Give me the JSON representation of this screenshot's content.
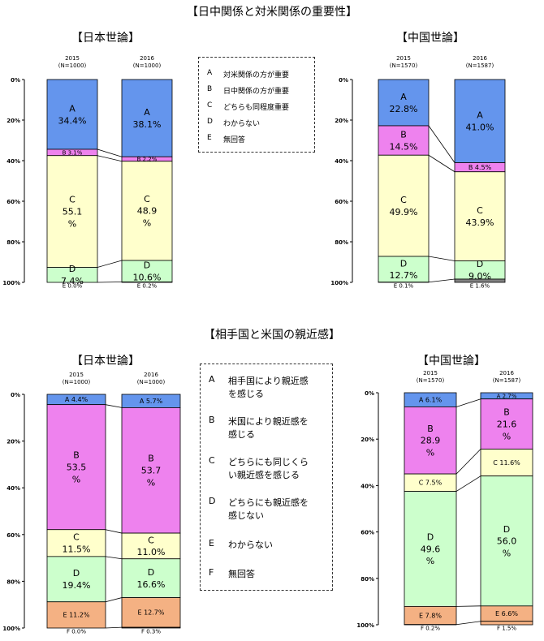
{
  "titles": {
    "top": "【日中関係と対米関係の重要性】",
    "bottom": "【相手国と米国の親近感】"
  },
  "panel_titles": {
    "top_left": "【日本世論】",
    "top_right": "【中国世論】",
    "bottom_left": "【日本世論】",
    "bottom_right": "【中国世論】"
  },
  "legend_top": {
    "items": [
      {
        "key": "A",
        "text": "対米関係の方が重要"
      },
      {
        "key": "B",
        "text": "日中関係の方が重要"
      },
      {
        "key": "C",
        "text": "どちらも同程度重要"
      },
      {
        "key": "D",
        "text": "わからない"
      },
      {
        "key": "E",
        "text": "無回答"
      }
    ]
  },
  "legend_bottom": {
    "items": [
      {
        "key": "A",
        "text": "相手国により親近感\nを感じる"
      },
      {
        "key": "B",
        "text": "米国により親近感を\n感じる"
      },
      {
        "key": "C",
        "text": "どちらにも同じくら\nい親近感を感じる"
      },
      {
        "key": "D",
        "text": "どちらにも親近感を\n感じない"
      },
      {
        "key": "E",
        "text": "わからない"
      },
      {
        "key": "F",
        "text": "無回答"
      }
    ]
  },
  "colors": {
    "A": "#6495ED",
    "B": "#EE82EE",
    "C": "#FFFFCC",
    "D": "#CCFFCC",
    "E": "#FFFFFF",
    "E_cn_2016_top": "#808080",
    "E_bottom": "#F4B183",
    "F_bottom": "#F4B183"
  },
  "chart_data": [
    {
      "type": "bar",
      "stacked": true,
      "categories": [
        "2015\n(N=1000)",
        "2016\n(N=1000)"
      ],
      "yticks": [
        "0%",
        "20%",
        "40%",
        "60%",
        "80%",
        "100%"
      ],
      "series": [
        {
          "name": "A",
          "values": [
            34.4,
            38.1
          ],
          "labels": [
            "A\n34.4%",
            "A\n38.1%"
          ]
        },
        {
          "name": "B",
          "values": [
            3.1,
            2.2
          ],
          "labels": [
            "B 3.1%",
            "B 2.2%"
          ]
        },
        {
          "name": "C",
          "values": [
            55.1,
            48.9
          ],
          "labels": [
            "C\n55.1\n%",
            "C\n48.9\n%"
          ]
        },
        {
          "name": "D",
          "values": [
            7.4,
            10.6
          ],
          "labels": [
            "D\n7.4%",
            "D\n10.6%"
          ]
        },
        {
          "name": "E",
          "values": [
            0.0,
            0.2
          ],
          "labels": [
            "E 0.0%",
            "E 0.2%"
          ]
        }
      ]
    },
    {
      "type": "bar",
      "stacked": true,
      "categories": [
        "2015\n(N=1570)",
        "2016\n(N=1587)"
      ],
      "yticks": [
        "0%",
        "20%",
        "40%",
        "60%",
        "80%",
        "100%"
      ],
      "series": [
        {
          "name": "A",
          "values": [
            22.8,
            41.0
          ],
          "labels": [
            "A\n22.8%",
            "A\n41.0%"
          ]
        },
        {
          "name": "B",
          "values": [
            14.5,
            4.5
          ],
          "labels": [
            "B\n14.5%",
            "B 4.5%"
          ]
        },
        {
          "name": "C",
          "values": [
            49.9,
            43.9
          ],
          "labels": [
            "C\n49.9%",
            "C\n43.9%"
          ]
        },
        {
          "name": "D",
          "values": [
            12.7,
            9.0
          ],
          "labels": [
            "D\n12.7%",
            "D\n9.0%"
          ]
        },
        {
          "name": "E",
          "values": [
            0.1,
            1.6
          ],
          "labels": [
            "E 0.1%",
            "E 1.6%"
          ]
        }
      ]
    },
    {
      "type": "bar",
      "stacked": true,
      "categories": [
        "2015\n(N=1000)",
        "2016\n(N=1000)"
      ],
      "yticks": [
        "0%",
        "20%",
        "40%",
        "60%",
        "80%",
        "100%"
      ],
      "series": [
        {
          "name": "A",
          "values": [
            4.4,
            5.7
          ],
          "labels": [
            "A 4.4%",
            "A 5.7%"
          ]
        },
        {
          "name": "B",
          "values": [
            53.5,
            53.7
          ],
          "labels": [
            "B\n53.5\n%",
            "B\n53.7\n%"
          ]
        },
        {
          "name": "C",
          "values": [
            11.5,
            11.0
          ],
          "labels": [
            "C\n11.5%",
            "C\n11.0%"
          ]
        },
        {
          "name": "D",
          "values": [
            19.4,
            16.6
          ],
          "labels": [
            "D\n19.4%",
            "D\n16.6%"
          ]
        },
        {
          "name": "E",
          "values": [
            11.2,
            12.7
          ],
          "labels": [
            "E 11.2%",
            "E 12.7%"
          ]
        },
        {
          "name": "F",
          "values": [
            0.0,
            0.3
          ],
          "labels": [
            "F 0.0%",
            "F 0.3%"
          ]
        }
      ]
    },
    {
      "type": "bar",
      "stacked": true,
      "categories": [
        "2015\n(N=1570)",
        "2016\n(N=1587)"
      ],
      "yticks": [
        "0%",
        "20%",
        "40%",
        "60%",
        "80%",
        "100%"
      ],
      "series": [
        {
          "name": "A",
          "values": [
            6.1,
            2.7
          ],
          "labels": [
            "A 6.1%",
            "A 2.7%"
          ]
        },
        {
          "name": "B",
          "values": [
            28.9,
            21.6
          ],
          "labels": [
            "B\n28.9\n%",
            "B\n21.6\n%"
          ]
        },
        {
          "name": "C",
          "values": [
            7.5,
            11.6
          ],
          "labels": [
            "C 7.5%",
            "C 11.6%"
          ]
        },
        {
          "name": "D",
          "values": [
            49.6,
            56.0
          ],
          "labels": [
            "D\n49.6\n%",
            "D\n56.0\n%"
          ]
        },
        {
          "name": "E",
          "values": [
            7.8,
            6.6
          ],
          "labels": [
            "E 7.8%",
            "E 6.6%"
          ]
        },
        {
          "name": "F",
          "values": [
            0.2,
            1.5
          ],
          "labels": [
            "F 0.2%",
            "F 1.5%"
          ]
        }
      ]
    }
  ]
}
